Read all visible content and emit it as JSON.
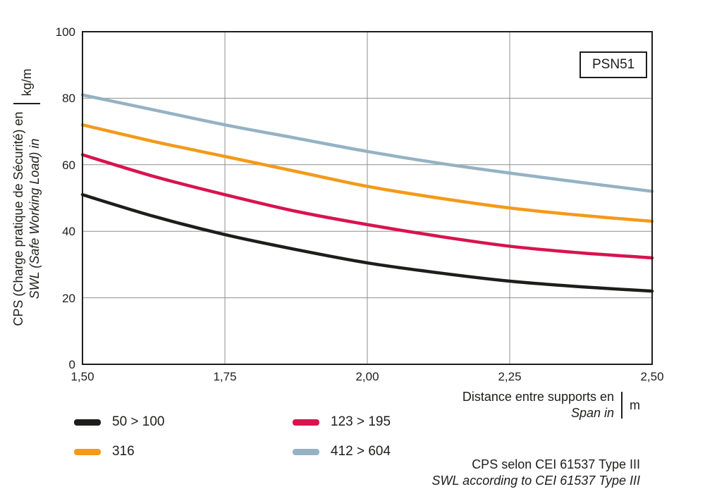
{
  "chart_data": {
    "type": "line",
    "title": "",
    "x": [
      1.5,
      1.625,
      1.75,
      1.875,
      2.0,
      2.125,
      2.25,
      2.375,
      2.5
    ],
    "xlim": [
      1.5,
      2.5
    ],
    "ylim": [
      0,
      100
    ],
    "grid": true,
    "xticks": {
      "values": [
        1.5,
        1.75,
        2.0,
        2.25,
        2.5
      ],
      "labels": [
        "1,50",
        "1,75",
        "2,00",
        "2,25",
        "2,50"
      ]
    },
    "yticks": {
      "values": [
        0,
        20,
        40,
        60,
        80,
        100
      ],
      "labels": [
        "0",
        "20",
        "40",
        "60",
        "80",
        "100"
      ]
    },
    "series": [
      {
        "name": "50 > 100",
        "color": "#1d1d1b",
        "values": [
          51,
          44.5,
          39,
          34.5,
          30.5,
          27.5,
          25,
          23.3,
          22
        ]
      },
      {
        "name": "123 > 195",
        "color": "#d8134e",
        "values": [
          63,
          56.5,
          51,
          46,
          42,
          38.5,
          35.5,
          33.5,
          32
        ]
      },
      {
        "name": "316",
        "color": "#f39a1a",
        "values": [
          72,
          67,
          62.5,
          58,
          53.5,
          50,
          47,
          44.8,
          43
        ]
      },
      {
        "name": "412 > 604",
        "color": "#95b2c4",
        "values": [
          81,
          76.5,
          72,
          68,
          64,
          60.5,
          57.5,
          54.7,
          52
        ]
      }
    ],
    "xlabel": {
      "line1": "Distance entre supports en",
      "line2": "Span in",
      "unit": "m"
    },
    "ylabel": {
      "line1": "CPS (Charge pratique de Sécurité) en",
      "line2": "SWL (Safe Working Load) in",
      "unit": "kg/m"
    },
    "legend_position": "bottom-left",
    "annotations": {
      "badge": "PSN51",
      "note_line1": "CPS selon CEI 61537 Type III",
      "note_line2": "SWL according to CEI 61537 Type III"
    }
  }
}
